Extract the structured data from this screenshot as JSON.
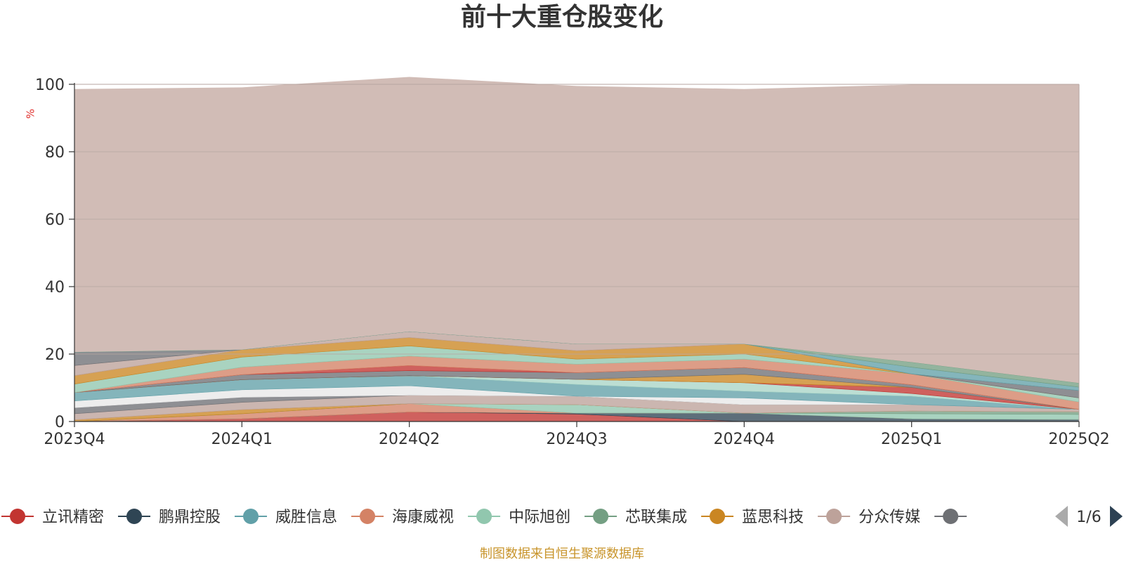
{
  "title": "前十大重仓股变化",
  "source_note": "制图数据来自恒生聚源数据库",
  "colors": {
    "title": "#333333",
    "axis": "#333333",
    "unit": "#e0302d",
    "source": "#c8942b",
    "grid": "#b7a6a1",
    "remainder_fill": "#d1bcb6"
  },
  "legend": {
    "page_indicator": "1/6",
    "prev_icon": "triangle-left-icon",
    "next_icon": "triangle-right-icon",
    "prev_color": "#aaaaaa",
    "next_color": "#2d4153"
  },
  "chart_data": {
    "type": "area",
    "stacked": true,
    "title": "前十大重仓股变化",
    "ylabel": "%",
    "xlabel": "",
    "ylim": [
      0,
      100
    ],
    "yticks": [
      0,
      20,
      40,
      60,
      80,
      100
    ],
    "categories": [
      "2023Q4",
      "2024Q1",
      "2024Q2",
      "2024Q3",
      "2024Q4",
      "2025Q1",
      "2025Q2"
    ],
    "grid": true,
    "legend_position": "bottom",
    "series": [
      {
        "name": "立讯精密",
        "color": "#c23531",
        "values": [
          0,
          0.8,
          2.8,
          2.2,
          0,
          0,
          0
        ]
      },
      {
        "name": "鹏鼎控股",
        "color": "#2f4554",
        "values": [
          0,
          0,
          0,
          0.3,
          2.5,
          0.8,
          0.6
        ]
      },
      {
        "name": "威胜信息",
        "color": "#61a0a8",
        "values": [
          0,
          0,
          0,
          0,
          0,
          0,
          0
        ]
      },
      {
        "name": "海康威视",
        "color": "#d48265",
        "values": [
          0,
          1.5,
          2.5,
          0,
          0,
          0,
          0
        ]
      },
      {
        "name": "中际旭创",
        "color": "#91c7ae",
        "values": [
          0,
          0,
          0,
          2.5,
          0,
          1.5,
          1.5
        ]
      },
      {
        "name": "芯联集成",
        "color": "#749f83",
        "values": [
          0,
          0,
          0,
          0,
          0,
          0.8,
          0.8
        ]
      },
      {
        "name": "蓝思科技",
        "color": "#ca8622",
        "values": [
          0.5,
          1.2,
          0,
          0,
          0,
          0,
          0
        ]
      },
      {
        "name": "分众传媒",
        "color": "#bda29a",
        "values": [
          1.8,
          2.2,
          2.5,
          2.5,
          2.5,
          1.9,
          0.7
        ]
      },
      {
        "name": "",
        "color": "#6e7074",
        "values": [
          1.8,
          1.5,
          0,
          0,
          0,
          0,
          0
        ]
      },
      {
        "name": "",
        "color": "#e8e8e8",
        "values": [
          2.0,
          2.2,
          2.8,
          0,
          2.0,
          0,
          0
        ]
      },
      {
        "name": "",
        "color": "#61a0a8",
        "values": [
          2.5,
          3.0,
          3.0,
          3.5,
          2.0,
          2.5,
          0
        ]
      },
      {
        "name": "",
        "color": "#a9d5c7",
        "values": [
          0,
          0,
          0,
          1.5,
          2.5,
          0.8,
          0
        ]
      },
      {
        "name": "",
        "color": "#c23531",
        "values": [
          0,
          0,
          0,
          0,
          0,
          1.8,
          0
        ]
      },
      {
        "name": "",
        "color": "#ca8622",
        "values": [
          0,
          0,
          0,
          0,
          2.5,
          0,
          0
        ]
      },
      {
        "name": "",
        "color": "#6e7074",
        "values": [
          0,
          1.5,
          1.5,
          2.0,
          2.0,
          0.8,
          0
        ]
      },
      {
        "name": "",
        "color": "#c23531",
        "values": [
          0,
          0,
          1.5,
          0,
          0,
          0,
          0
        ]
      },
      {
        "name": "",
        "color": "#d48265",
        "values": [
          0,
          2.2,
          2.8,
          2.5,
          2.5,
          3.2,
          2.2
        ]
      },
      {
        "name": "",
        "color": "#91c7ae",
        "values": [
          2.5,
          3.0,
          3.0,
          1.5,
          1.5,
          0,
          1.2
        ]
      },
      {
        "name": "",
        "color": "#ca8622",
        "values": [
          2.5,
          2.2,
          2.5,
          2.5,
          3.0,
          0,
          0
        ]
      },
      {
        "name": "",
        "color": "#bda29a",
        "values": [
          3.0,
          0,
          1.8,
          2.0,
          0,
          0,
          0
        ]
      },
      {
        "name": "",
        "color": "#6e7074",
        "values": [
          4.0,
          0,
          0,
          0,
          0,
          0,
          2.2
        ]
      },
      {
        "name": "",
        "color": "#61a0a8",
        "values": [
          0,
          0,
          0,
          0,
          0,
          2.0,
          1.0
        ]
      },
      {
        "name": "",
        "color": "#749f83",
        "values": [
          0,
          0,
          0,
          0,
          0,
          1.5,
          1.2
        ]
      },
      {
        "name": "",
        "color": "#d1bcb6",
        "values": [
          78.0,
          77.8,
          75.5,
          76.5,
          75.6,
          82.3,
          88.6
        ]
      }
    ]
  }
}
